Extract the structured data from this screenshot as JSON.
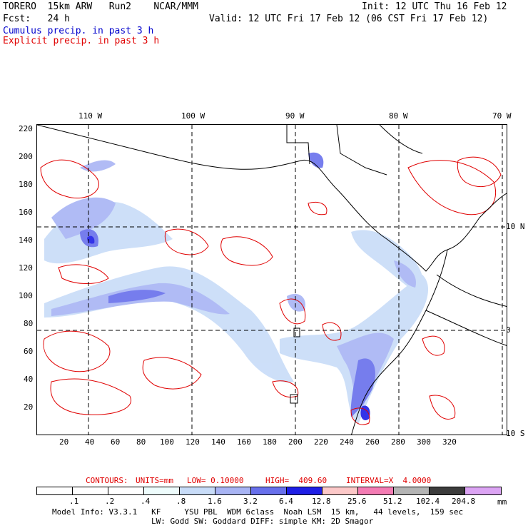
{
  "header": {
    "line1_left": "TORERO  15km ARW   Run2    NCAR/MMM",
    "line1_right": "Init: 12 UTC Thu 16 Feb 12",
    "line2_left": "Fcst:   24 h",
    "line2_right": "Valid: 12 UTC Fri 17 Feb 12 (06 CST Fri 17 Feb 12)",
    "fields": [
      "Cumulus precip. in past 3 h",
      "Explicit precip. in past 3 h"
    ]
  },
  "map": {
    "top_lon_labels": [
      "110 W",
      "100 W",
      "90 W",
      "80 W",
      "70 W"
    ],
    "right_lat_labels": [
      "10 N",
      "0",
      "10 S"
    ],
    "left_y_ticks": [
      "220",
      "200",
      "180",
      "160",
      "140",
      "120",
      "100",
      "80",
      "60",
      "40",
      "20"
    ],
    "bottom_x_ticks": [
      "20",
      "40",
      "60",
      "80",
      "100",
      "120",
      "140",
      "160",
      "180",
      "200",
      "220",
      "240",
      "260",
      "280",
      "300",
      "320"
    ]
  },
  "contours_info": {
    "prefix": "CONTOURS:",
    "units": "UNITS=mm",
    "low": "LOW= 0.10000",
    "high": "HIGH=  409.60",
    "interval": "INTERVAL=X  4.0000"
  },
  "legend": {
    "labels": [
      ".1",
      ".2",
      ".4",
      ".8",
      "1.6",
      "3.2",
      "6.4",
      "12.8",
      "25.6",
      "51.2",
      "102.4",
      "204.8"
    ],
    "colors": [
      "#ffffff",
      "#ffffff",
      "#ffffff",
      "#eefcfc",
      "#c8dcf8",
      "#a8b4f4",
      "#6870ec",
      "#1e1ee6",
      "#fcc8c8",
      "#f47cb4",
      "#b4b4b4",
      "#3c3c3c",
      "#dca4f4"
    ],
    "unit": "mm"
  },
  "footer": {
    "line1": "Model Info: V3.3.1   KF     YSU PBL  WDM 6class  Noah LSM  15 km,   44 levels,  159 sec",
    "line2": "LW: Godd SW: Goddard DIFF: simple KM: 2D Smagor"
  }
}
